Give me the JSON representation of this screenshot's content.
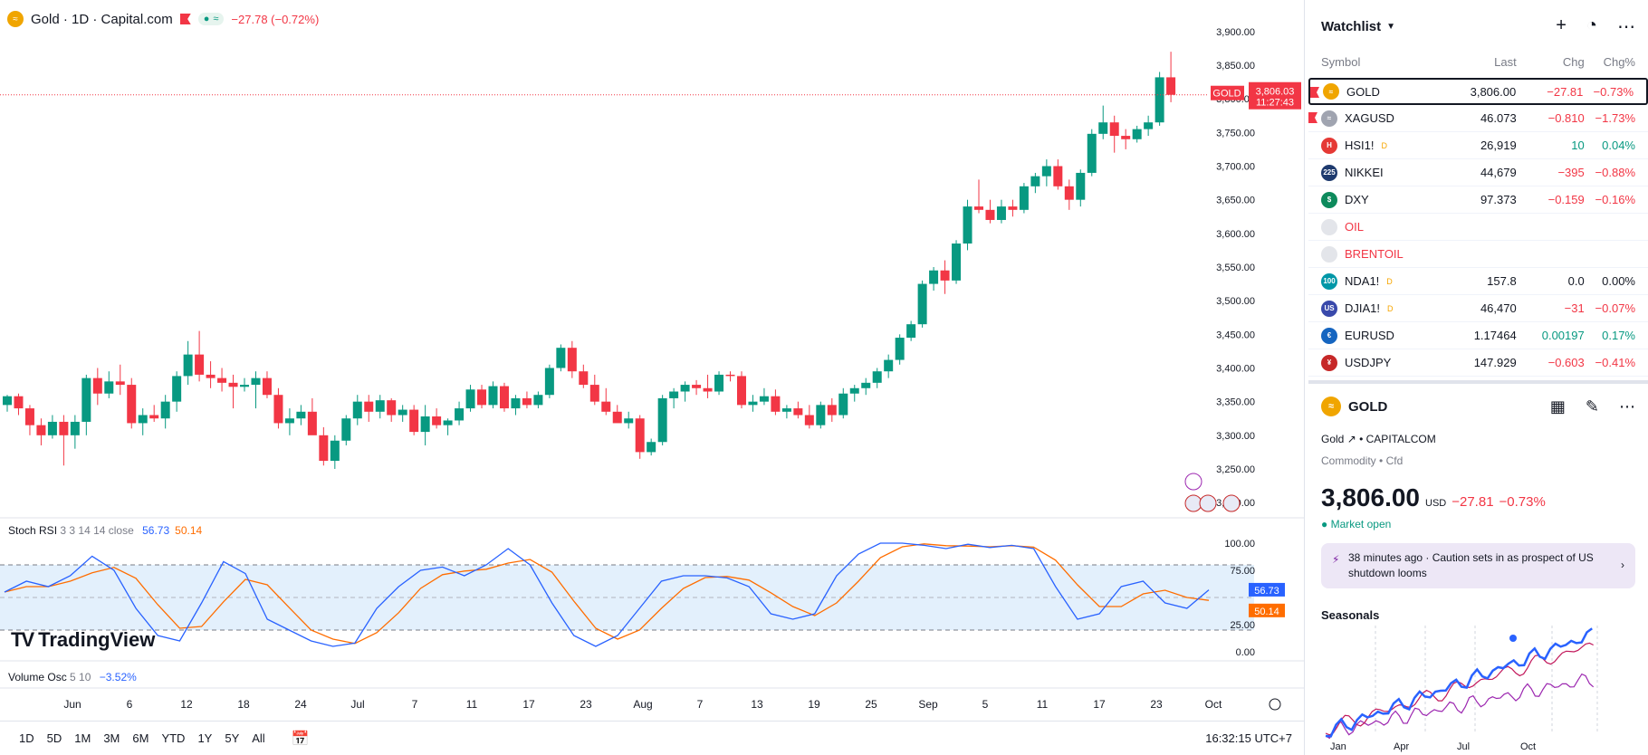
{
  "legend": {
    "symbol_title": "Gold · 1D · Capital.com",
    "change": "−27.78 (−0.72%)",
    "pill_text": "≈"
  },
  "price_axis": {
    "ticks": [
      "3,900.00",
      "3,850.00",
      "3,800.00",
      "3,750.00",
      "3,700.00",
      "3,650.00",
      "3,600.00",
      "3,550.00",
      "3,500.00",
      "3,450.00",
      "3,400.00",
      "3,350.00",
      "3,300.00",
      "3,250.00",
      "3,200.00"
    ],
    "tag_symbol": "GOLD",
    "tag_price": "3,806.03",
    "tag_timer": "11:27:43"
  },
  "stoch": {
    "name": "Stoch RSI",
    "params": "3 3 14 14 close",
    "k": "56.73",
    "d": "50.14",
    "ticks": [
      "100.00",
      "75.00",
      "25.00",
      "0.00"
    ]
  },
  "volume": {
    "name": "Volume Osc",
    "params": "5 10",
    "value": "−3.52%"
  },
  "time_axis": [
    "Jun",
    "6",
    "12",
    "18",
    "24",
    "Jul",
    "7",
    "11",
    "17",
    "23",
    "Aug",
    "7",
    "13",
    "19",
    "25",
    "Sep",
    "5",
    "11",
    "17",
    "23",
    "Oct"
  ],
  "brand": "TradingView",
  "ranges": [
    "1D",
    "5D",
    "1M",
    "3M",
    "6M",
    "YTD",
    "1Y",
    "5Y",
    "All"
  ],
  "clock": "16:32:15 UTC+7",
  "colors": {
    "up": "#089981",
    "down": "#f23645",
    "k": "#2962ff",
    "d": "#ff6d00"
  },
  "chart_data": {
    "type": "candlestick",
    "title": "Gold · 1D · Capital.com",
    "ylim": [
      3180,
      3920
    ],
    "candles": [
      [
        3345,
        3360,
        3335,
        3358
      ],
      [
        3358,
        3362,
        3330,
        3340
      ],
      [
        3340,
        3345,
        3300,
        3315
      ],
      [
        3315,
        3325,
        3285,
        3300
      ],
      [
        3300,
        3330,
        3295,
        3320
      ],
      [
        3320,
        3330,
        3255,
        3300
      ],
      [
        3300,
        3330,
        3280,
        3320
      ],
      [
        3320,
        3390,
        3300,
        3385
      ],
      [
        3385,
        3400,
        3345,
        3362
      ],
      [
        3362,
        3395,
        3355,
        3380
      ],
      [
        3380,
        3405,
        3360,
        3375
      ],
      [
        3375,
        3385,
        3310,
        3318
      ],
      [
        3318,
        3340,
        3300,
        3330
      ],
      [
        3330,
        3345,
        3320,
        3325
      ],
      [
        3325,
        3360,
        3310,
        3350
      ],
      [
        3350,
        3395,
        3335,
        3388
      ],
      [
        3388,
        3440,
        3375,
        3420
      ],
      [
        3420,
        3455,
        3380,
        3390
      ],
      [
        3390,
        3410,
        3370,
        3385
      ],
      [
        3385,
        3400,
        3365,
        3378
      ],
      [
        3378,
        3390,
        3340,
        3372
      ],
      [
        3372,
        3385,
        3365,
        3375
      ],
      [
        3375,
        3395,
        3340,
        3385
      ],
      [
        3385,
        3395,
        3355,
        3360
      ],
      [
        3360,
        3370,
        3310,
        3318
      ],
      [
        3318,
        3340,
        3300,
        3325
      ],
      [
        3325,
        3345,
        3315,
        3335
      ],
      [
        3335,
        3355,
        3305,
        3300
      ],
      [
        3300,
        3312,
        3255,
        3262
      ],
      [
        3262,
        3300,
        3250,
        3292
      ],
      [
        3292,
        3330,
        3285,
        3325
      ],
      [
        3325,
        3360,
        3315,
        3350
      ],
      [
        3350,
        3360,
        3320,
        3335
      ],
      [
        3335,
        3360,
        3325,
        3352
      ],
      [
        3352,
        3355,
        3320,
        3330
      ],
      [
        3330,
        3345,
        3320,
        3338
      ],
      [
        3338,
        3345,
        3300,
        3305
      ],
      [
        3305,
        3345,
        3285,
        3328
      ],
      [
        3328,
        3340,
        3310,
        3315
      ],
      [
        3315,
        3325,
        3300,
        3322
      ],
      [
        3322,
        3350,
        3315,
        3340
      ],
      [
        3340,
        3375,
        3335,
        3368
      ],
      [
        3368,
        3375,
        3340,
        3345
      ],
      [
        3345,
        3380,
        3340,
        3373
      ],
      [
        3373,
        3378,
        3335,
        3340
      ],
      [
        3340,
        3360,
        3330,
        3355
      ],
      [
        3355,
        3365,
        3340,
        3345
      ],
      [
        3345,
        3365,
        3340,
        3360
      ],
      [
        3360,
        3405,
        3355,
        3400
      ],
      [
        3400,
        3435,
        3395,
        3430
      ],
      [
        3430,
        3440,
        3385,
        3395
      ],
      [
        3395,
        3405,
        3370,
        3375
      ],
      [
        3375,
        3390,
        3345,
        3350
      ],
      [
        3350,
        3370,
        3330,
        3335
      ],
      [
        3335,
        3345,
        3320,
        3318
      ],
      [
        3318,
        3335,
        3310,
        3325
      ],
      [
        3325,
        3330,
        3265,
        3275
      ],
      [
        3275,
        3295,
        3270,
        3290
      ],
      [
        3290,
        3360,
        3285,
        3355
      ],
      [
        3355,
        3370,
        3340,
        3365
      ],
      [
        3365,
        3380,
        3350,
        3375
      ],
      [
        3375,
        3382,
        3360,
        3370
      ],
      [
        3370,
        3390,
        3355,
        3365
      ],
      [
        3365,
        3395,
        3360,
        3390
      ],
      [
        3390,
        3395,
        3380,
        3388
      ],
      [
        3388,
        3395,
        3340,
        3345
      ],
      [
        3345,
        3360,
        3335,
        3350
      ],
      [
        3350,
        3370,
        3345,
        3358
      ],
      [
        3358,
        3368,
        3330,
        3335
      ],
      [
        3335,
        3345,
        3325,
        3340
      ],
      [
        3340,
        3350,
        3325,
        3330
      ],
      [
        3330,
        3345,
        3310,
        3315
      ],
      [
        3315,
        3350,
        3310,
        3345
      ],
      [
        3345,
        3355,
        3320,
        3330
      ],
      [
        3330,
        3370,
        3325,
        3362
      ],
      [
        3362,
        3375,
        3350,
        3370
      ],
      [
        3370,
        3385,
        3360,
        3378
      ],
      [
        3378,
        3400,
        3370,
        3395
      ],
      [
        3395,
        3420,
        3385,
        3412
      ],
      [
        3412,
        3450,
        3405,
        3445
      ],
      [
        3445,
        3470,
        3440,
        3465
      ],
      [
        3465,
        3530,
        3460,
        3525
      ],
      [
        3525,
        3550,
        3515,
        3545
      ],
      [
        3545,
        3560,
        3510,
        3530
      ],
      [
        3530,
        3590,
        3525,
        3585
      ],
      [
        3585,
        3650,
        3575,
        3640
      ],
      [
        3640,
        3680,
        3630,
        3635
      ],
      [
        3635,
        3650,
        3615,
        3620
      ],
      [
        3620,
        3650,
        3615,
        3640
      ],
      [
        3640,
        3650,
        3625,
        3635
      ],
      [
        3635,
        3675,
        3630,
        3670
      ],
      [
        3670,
        3690,
        3660,
        3685
      ],
      [
        3685,
        3710,
        3670,
        3700
      ],
      [
        3700,
        3710,
        3665,
        3670
      ],
      [
        3670,
        3680,
        3635,
        3650
      ],
      [
        3650,
        3695,
        3640,
        3690
      ],
      [
        3690,
        3755,
        3685,
        3748
      ],
      [
        3748,
        3790,
        3740,
        3765
      ],
      [
        3765,
        3775,
        3720,
        3745
      ],
      [
        3745,
        3755,
        3725,
        3740
      ],
      [
        3740,
        3760,
        3735,
        3755
      ],
      [
        3755,
        3775,
        3745,
        3765
      ],
      [
        3765,
        3840,
        3760,
        3832
      ],
      [
        3832,
        3870,
        3795,
        3806
      ]
    ]
  },
  "watchlist": {
    "title": "Watchlist",
    "columns": [
      "Symbol",
      "Last",
      "Chg",
      "Chg%"
    ],
    "rows": [
      {
        "symbol": "GOLD",
        "last": "3,806.00",
        "chg": "−27.81",
        "pct": "−0.73%",
        "icon": "gold-icon",
        "icolor": "#f0a500",
        "itext": "≈",
        "dir": "neg",
        "sup": ""
      },
      {
        "symbol": "XAGUSD",
        "last": "46.073",
        "chg": "−0.810",
        "pct": "−1.73%",
        "icon": "silver-icon",
        "icolor": "#a0a4b0",
        "itext": "≈",
        "dir": "neg",
        "sup": ""
      },
      {
        "symbol": "HSI1!",
        "last": "26,919",
        "chg": "10",
        "pct": "0.04%",
        "icon": "hsi-icon",
        "icolor": "#e53935",
        "itext": "H",
        "dir": "pos",
        "sup": "D"
      },
      {
        "symbol": "NIKKEI",
        "last": "44,679",
        "chg": "−395",
        "pct": "−0.88%",
        "icon": "nikkei-icon",
        "icolor": "#1e3a6e",
        "itext": "225",
        "dir": "neg",
        "sup": ""
      },
      {
        "symbol": "DXY",
        "last": "97.373",
        "chg": "−0.159",
        "pct": "−0.16%",
        "icon": "dxy-icon",
        "icolor": "#0d8a5c",
        "itext": "$",
        "dir": "neg",
        "sup": ""
      },
      {
        "symbol": "OIL",
        "last": "",
        "chg": "",
        "pct": "",
        "icon": "oil-icon",
        "icolor": "#e3e5ea",
        "itext": "",
        "dir": "dim",
        "sup": ""
      },
      {
        "symbol": "BRENTOIL",
        "last": "",
        "chg": "",
        "pct": "",
        "icon": "brentoil-icon",
        "icolor": "#e3e5ea",
        "itext": "",
        "dir": "dim",
        "sup": ""
      },
      {
        "symbol": "NDA1!",
        "last": "157.8",
        "chg": "0.0",
        "pct": "0.00%",
        "icon": "nda-icon",
        "icolor": "#0097a7",
        "itext": "100",
        "dir": "neu",
        "sup": "D"
      },
      {
        "symbol": "DJIA1!",
        "last": "46,470",
        "chg": "−31",
        "pct": "−0.07%",
        "icon": "us-flag-icon",
        "icolor": "#3949ab",
        "itext": "US",
        "dir": "neg",
        "sup": "D"
      },
      {
        "symbol": "EURUSD",
        "last": "1.17464",
        "chg": "0.00197",
        "pct": "0.17%",
        "icon": "eurusd-icon",
        "icolor": "#1565c0",
        "itext": "€",
        "dir": "pos",
        "sup": ""
      },
      {
        "symbol": "USDJPY",
        "last": "147.929",
        "chg": "−0.603",
        "pct": "−0.41%",
        "icon": "usdjpy-icon",
        "icolor": "#c62828",
        "itext": "¥",
        "dir": "neg",
        "sup": ""
      }
    ]
  },
  "detail": {
    "symbol": "GOLD",
    "name": "Gold",
    "exchange": "CAPITALCOM",
    "category": "Commodity",
    "type": "Cfd",
    "price": "3,806.00",
    "currency": "USD",
    "chg": "−27.81",
    "pct": "−0.73%",
    "market_status": "Market open",
    "news": "38 minutes ago · Caution sets in as prospect of US shutdown looms",
    "seasonals": "Seasonals",
    "seasonal_months": [
      "Jan",
      "Apr",
      "Jul",
      "Oct"
    ]
  }
}
